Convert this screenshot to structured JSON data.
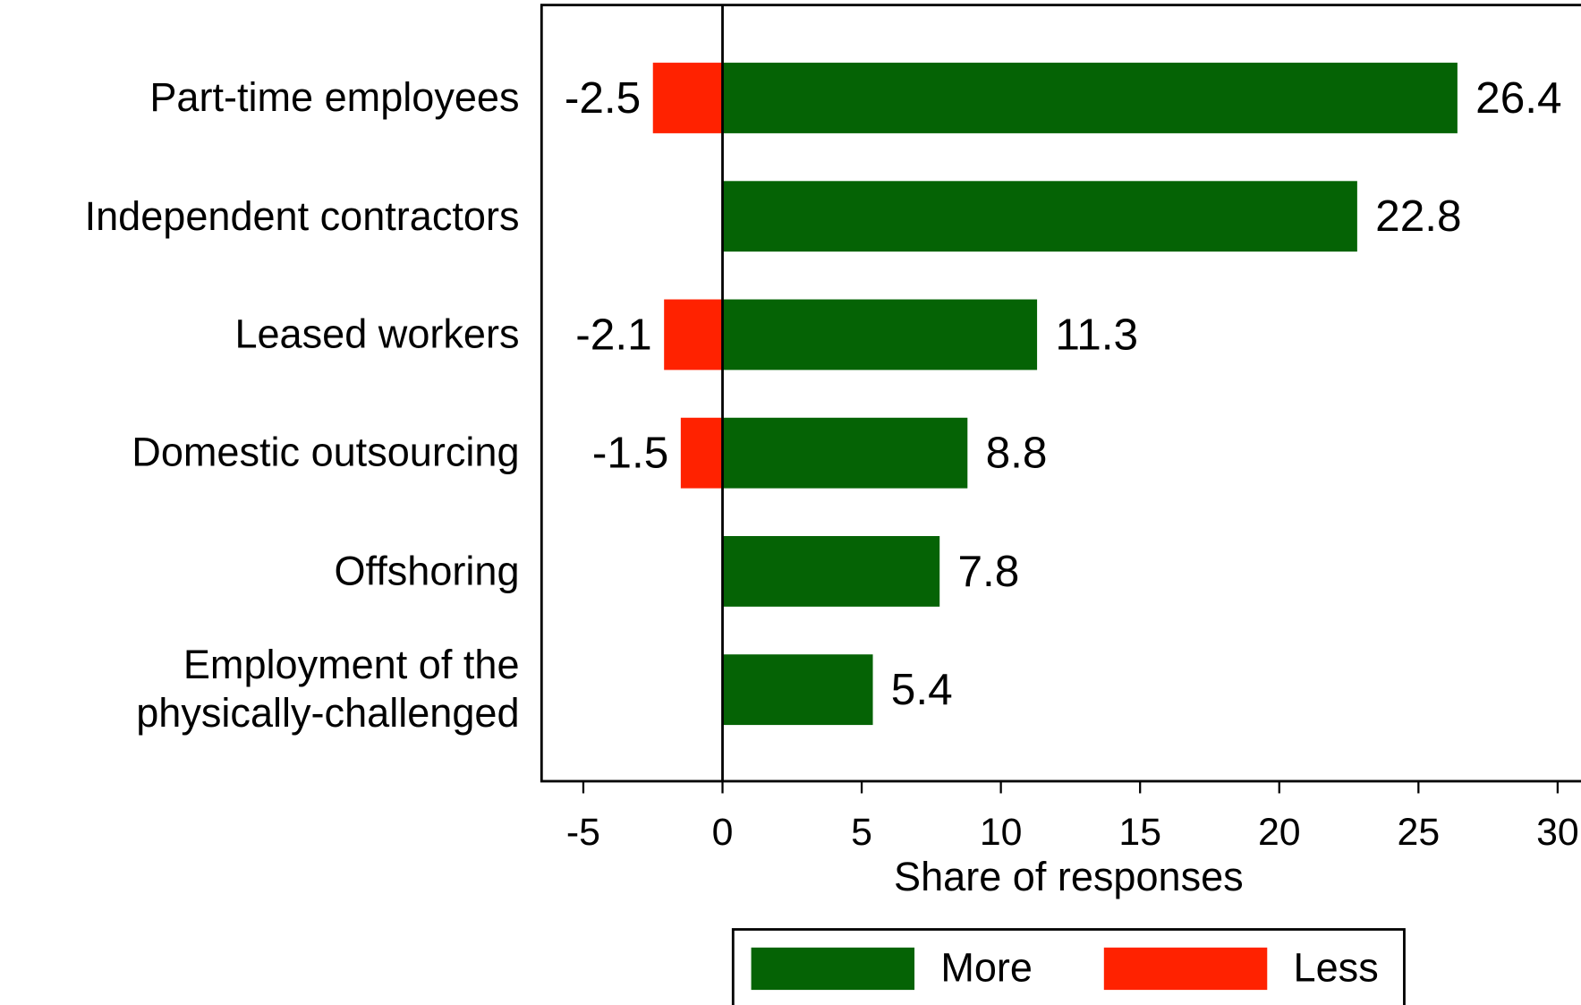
{
  "chart_data": {
    "type": "diverging-bar",
    "categories": [
      "Part-time employees",
      "Independent contractors",
      "Leased workers",
      "Domestic outsourcing",
      "Offshoring",
      "Employment of the\nphysically-challenged"
    ],
    "series": [
      {
        "name": "More",
        "color": "#056305",
        "values": [
          26.4,
          22.8,
          11.3,
          8.8,
          7.8,
          5.4
        ]
      },
      {
        "name": "Less",
        "color": "#ff2200",
        "values": [
          -2.5,
          null,
          -2.1,
          -1.5,
          null,
          null
        ]
      }
    ],
    "xlabel": "Share of responses",
    "xlim": [
      -6.5,
      30.5
    ],
    "xticks": [
      -5,
      0,
      5,
      10,
      15,
      20,
      25,
      30
    ]
  }
}
